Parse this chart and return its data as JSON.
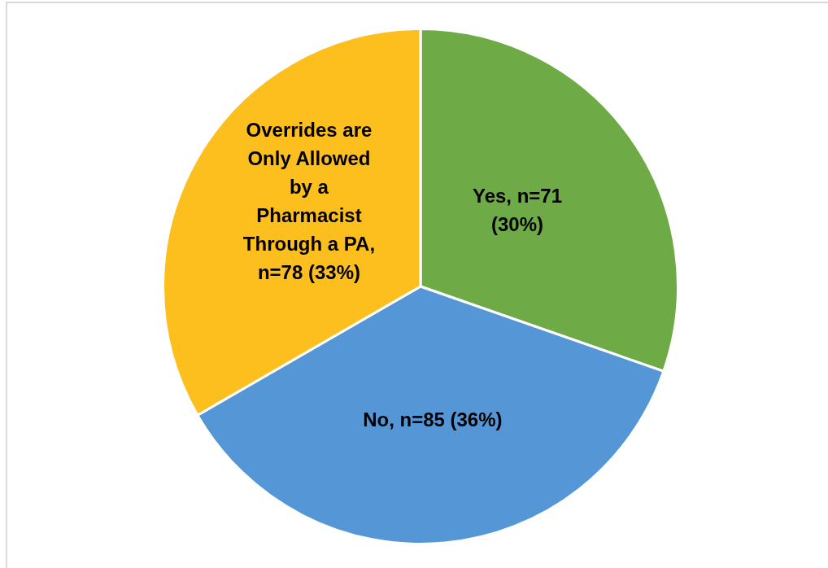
{
  "chart_data": {
    "type": "pie",
    "categories": [
      "Yes, n=71 (30%)",
      "No, n=85 (36%)",
      "Overrides are Only Allowed by a Pharmacist Through a PA, n=78 (33%)"
    ],
    "values": [
      71,
      85,
      78
    ],
    "colors": [
      "#6eab46",
      "#5597d6",
      "#fcbf1e"
    ]
  }
}
